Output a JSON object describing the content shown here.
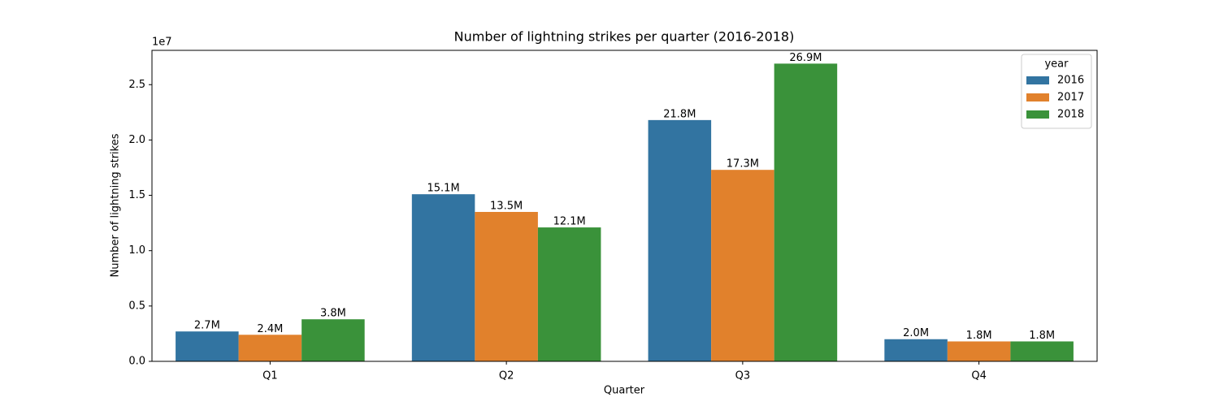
{
  "chart_data": {
    "type": "bar",
    "title": "Number of lightning strikes per quarter (2016-2018)",
    "x_label": "Quarter",
    "y_label": "Number of lightning strikes",
    "y_offset_label": "1e7",
    "categories": [
      "Q1",
      "Q2",
      "Q3",
      "Q4"
    ],
    "legend_title": "year",
    "legend": "upper right",
    "series": [
      {
        "name": "2016",
        "color": "#3274a1",
        "values": [
          2700000,
          15100000,
          21800000,
          2000000
        ],
        "value_labels": [
          "2.7M",
          "15.1M",
          "21.8M",
          "2.0M"
        ]
      },
      {
        "name": "2017",
        "color": "#e1812c",
        "values": [
          2400000,
          13500000,
          17300000,
          1800000
        ],
        "value_labels": [
          "2.4M",
          "13.5M",
          "17.3M",
          "1.8M"
        ]
      },
      {
        "name": "2018",
        "color": "#3a923a",
        "values": [
          3800000,
          12100000,
          26900000,
          1800000
        ],
        "value_labels": [
          "3.8M",
          "12.1M",
          "26.9M",
          "1.8M"
        ]
      }
    ],
    "ylim": [
      0,
      28100000
    ],
    "yticks": [
      {
        "value": 0,
        "label": "0.0"
      },
      {
        "value": 5000000,
        "label": "0.5"
      },
      {
        "value": 10000000,
        "label": "1.0"
      },
      {
        "value": 15000000,
        "label": "1.5"
      },
      {
        "value": 20000000,
        "label": "2.0"
      },
      {
        "value": 25000000,
        "label": "2.5"
      }
    ],
    "grid": false
  }
}
